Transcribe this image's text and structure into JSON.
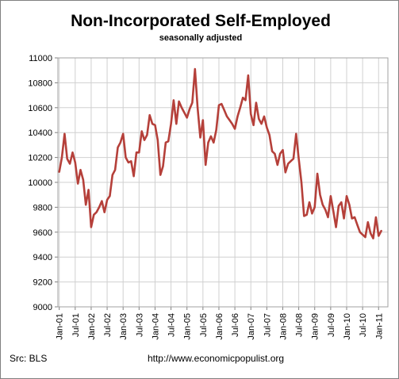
{
  "chart_data": {
    "type": "line",
    "title": "Non-Incorporated Self-Employed",
    "subtitle": "seasonally adjusted",
    "xlabel": "",
    "ylabel": "",
    "ylim": [
      9000,
      11000
    ],
    "y_ticks": [
      9000,
      9200,
      9400,
      9600,
      9800,
      10000,
      10200,
      10400,
      10600,
      10800,
      11000
    ],
    "x_start": "Jan-01",
    "x_tick_labels": [
      "Jan-01",
      "Jul-01",
      "Jan-02",
      "Jul-02",
      "Jan-03",
      "Jul-03",
      "Jan-04",
      "Jul-04",
      "Jan-05",
      "Jul-05",
      "Jan-06",
      "Jul-06",
      "Jan-07",
      "Jul-07",
      "Jan-08",
      "Jul-08",
      "Jan-09",
      "Jul-09",
      "Jan-10",
      "Jul-10",
      "Jan-11"
    ],
    "grid": true,
    "legend": "none",
    "line_color": "#b5403a",
    "series": [
      {
        "values": [
          10085,
          10200,
          10390,
          10190,
          10150,
          10240,
          10160,
          9990,
          10100,
          10020,
          9820,
          9940,
          9640,
          9740,
          9760,
          9800,
          9850,
          9760,
          9860,
          9890,
          10060,
          10100,
          10280,
          10320,
          10390,
          10200,
          10160,
          10170,
          10050,
          10240,
          10240,
          10410,
          10340,
          10380,
          10540,
          10470,
          10460,
          10340,
          10060,
          10130,
          10320,
          10330,
          10470,
          10660,
          10470,
          10650,
          10600,
          10560,
          10520,
          10590,
          10640,
          10910,
          10600,
          10360,
          10500,
          10140,
          10320,
          10370,
          10320,
          10420,
          10620,
          10630,
          10580,
          10530,
          10500,
          10470,
          10430,
          10530,
          10600,
          10680,
          10660,
          10860,
          10550,
          10460,
          10640,
          10510,
          10470,
          10530,
          10440,
          10380,
          10250,
          10230,
          10140,
          10230,
          10260,
          10080,
          10150,
          10170,
          10190,
          10390,
          10190,
          10000,
          9730,
          9740,
          9840,
          9750,
          9800,
          10070,
          9900,
          9820,
          9780,
          9720,
          9890,
          9770,
          9640,
          9810,
          9840,
          9710,
          9890,
          9820,
          9710,
          9720,
          9660,
          9600,
          9580,
          9560,
          9680,
          9590,
          9550,
          9720,
          9570,
          9610
        ]
      }
    ],
    "source_note": "Src: BLS",
    "footer_url": "http://www.economicpopulist.org"
  }
}
